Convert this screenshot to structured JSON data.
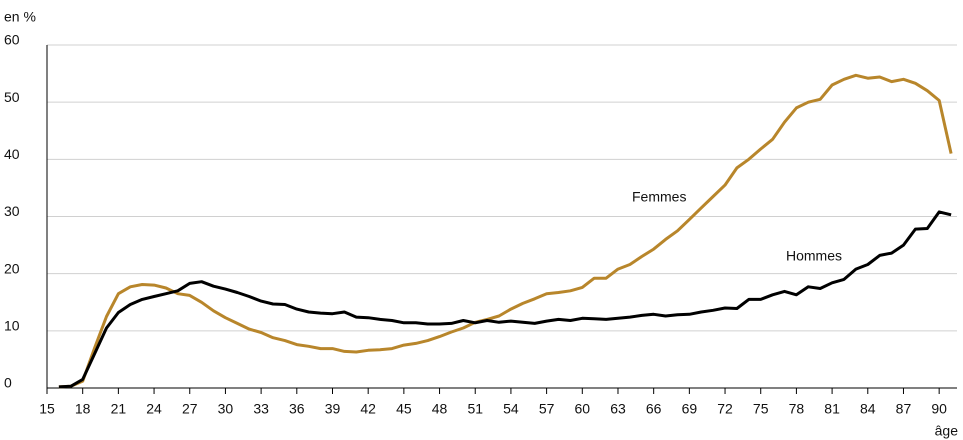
{
  "chart_data": {
    "type": "line",
    "y_label": "en %",
    "x_label": "âge",
    "x": [
      16,
      17,
      18,
      19,
      20,
      21,
      22,
      23,
      24,
      25,
      26,
      27,
      28,
      29,
      30,
      31,
      32,
      33,
      34,
      35,
      36,
      37,
      38,
      39,
      40,
      41,
      42,
      43,
      44,
      45,
      46,
      47,
      48,
      49,
      50,
      51,
      52,
      53,
      54,
      55,
      56,
      57,
      58,
      59,
      60,
      61,
      62,
      63,
      64,
      65,
      66,
      67,
      68,
      69,
      70,
      71,
      72,
      73,
      74,
      75,
      76,
      77,
      78,
      79,
      80,
      81,
      82,
      83,
      84,
      85,
      86,
      87,
      88,
      89,
      90,
      91
    ],
    "series": [
      {
        "name": "Femmes",
        "color": "#b8862b",
        "values": [
          0.2,
          0.3,
          1.2,
          7,
          12.5,
          16.5,
          17.7,
          18.1,
          18,
          17.5,
          16.5,
          16.2,
          15,
          13.5,
          12.3,
          11.3,
          10.3,
          9.7,
          8.8,
          8.3,
          7.6,
          7.3,
          6.9,
          6.9,
          6.4,
          6.3,
          6.6,
          6.7,
          6.9,
          7.5,
          7.8,
          8.3,
          9,
          9.8,
          10.5,
          11.5,
          12,
          12.6,
          13.8,
          14.8,
          15.6,
          16.5,
          16.7,
          17,
          17.6,
          19.2,
          19.2,
          20.8,
          21.6,
          23,
          24.3,
          26,
          27.5,
          29.5,
          31.5,
          33.5,
          35.5,
          38.5,
          40,
          41.8,
          43.5,
          46.5,
          49,
          50,
          50.5,
          53,
          54,
          54.7,
          54.2,
          54.4,
          53.6,
          54,
          53.3,
          52,
          50.3,
          41
        ]
      },
      {
        "name": "Hommes",
        "color": "#000000",
        "values": [
          0.2,
          0.3,
          1.5,
          6,
          10.5,
          13.2,
          14.6,
          15.5,
          16,
          16.5,
          17,
          18.3,
          18.6,
          17.8,
          17.3,
          16.7,
          16,
          15.2,
          14.7,
          14.6,
          13.8,
          13.3,
          13.1,
          13,
          13.3,
          12.4,
          12.3,
          12,
          11.8,
          11.4,
          11.4,
          11.2,
          11.2,
          11.3,
          11.8,
          11.4,
          11.8,
          11.5,
          11.7,
          11.5,
          11.3,
          11.7,
          12,
          11.8,
          12.2,
          12.1,
          12,
          12.2,
          12.4,
          12.7,
          12.9,
          12.6,
          12.8,
          12.9,
          13.3,
          13.6,
          14,
          13.9,
          15.5,
          15.5,
          16.3,
          16.9,
          16.3,
          17.7,
          17.4,
          18.4,
          19,
          20.8,
          21.6,
          23.2,
          23.6,
          25,
          27.8,
          27.9,
          30.8,
          30.3
        ]
      }
    ],
    "xlim": [
      15,
      91.5
    ],
    "xticks": [
      15,
      18,
      21,
      24,
      27,
      30,
      33,
      36,
      39,
      42,
      45,
      48,
      51,
      54,
      57,
      60,
      63,
      66,
      69,
      72,
      75,
      78,
      81,
      84,
      87,
      90
    ],
    "ylim": [
      0,
      60
    ],
    "yticks": [
      0,
      10,
      20,
      30,
      40,
      50,
      60
    ],
    "grid": true
  }
}
